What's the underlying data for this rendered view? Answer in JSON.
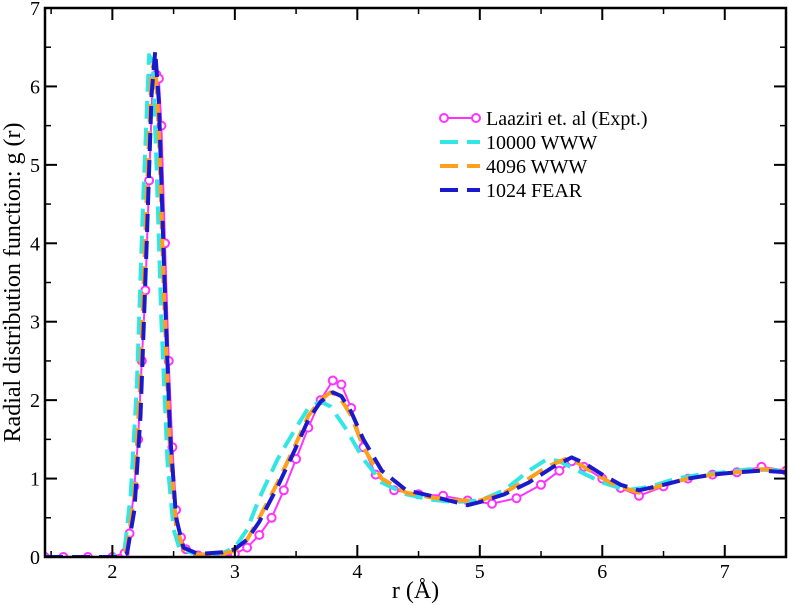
{
  "chart_data": {
    "type": "line",
    "xlabel": "r (Å)",
    "ylabel": "Radial distribution function: g (r)",
    "xlim": [
      1.45,
      7.5
    ],
    "ylim": [
      0,
      7
    ],
    "x_ticks": [
      2,
      3,
      4,
      5,
      6,
      7
    ],
    "y_ticks": [
      0,
      1,
      2,
      3,
      4,
      5,
      6,
      7
    ],
    "x_tick_labels": [
      "2",
      "3",
      "4",
      "5",
      "6",
      "7"
    ],
    "y_tick_labels": [
      "0",
      "1",
      "2",
      "3",
      "4",
      "5",
      "6",
      "7"
    ],
    "legend_position": "top-right",
    "grid": false,
    "series": [
      {
        "name": "Laaziri et. al (Expt.)",
        "color": "#ff33ff",
        "style": "solid-with-circles",
        "points": [
          [
            1.45,
            0
          ],
          [
            1.6,
            0
          ],
          [
            1.8,
            0
          ],
          [
            2.0,
            0
          ],
          [
            2.1,
            0.05
          ],
          [
            2.14,
            0.3
          ],
          [
            2.18,
            0.9
          ],
          [
            2.21,
            1.5
          ],
          [
            2.24,
            2.5
          ],
          [
            2.27,
            3.4
          ],
          [
            2.3,
            4.8
          ],
          [
            2.33,
            6.1
          ],
          [
            2.36,
            6.15
          ],
          [
            2.38,
            6.1
          ],
          [
            2.4,
            5.5
          ],
          [
            2.43,
            4.0
          ],
          [
            2.46,
            2.5
          ],
          [
            2.49,
            1.4
          ],
          [
            2.52,
            0.6
          ],
          [
            2.56,
            0.25
          ],
          [
            2.6,
            0.1
          ],
          [
            2.7,
            0.02
          ],
          [
            2.8,
            0
          ],
          [
            2.9,
            0.01
          ],
          [
            3.0,
            0.04
          ],
          [
            3.1,
            0.12
          ],
          [
            3.2,
            0.28
          ],
          [
            3.3,
            0.5
          ],
          [
            3.4,
            0.85
          ],
          [
            3.5,
            1.25
          ],
          [
            3.6,
            1.65
          ],
          [
            3.7,
            2.0
          ],
          [
            3.8,
            2.25
          ],
          [
            3.87,
            2.2
          ],
          [
            3.95,
            1.9
          ],
          [
            4.05,
            1.4
          ],
          [
            4.15,
            1.05
          ],
          [
            4.3,
            0.85
          ],
          [
            4.5,
            0.8
          ],
          [
            4.7,
            0.78
          ],
          [
            4.9,
            0.72
          ],
          [
            5.1,
            0.68
          ],
          [
            5.3,
            0.75
          ],
          [
            5.5,
            0.92
          ],
          [
            5.65,
            1.1
          ],
          [
            5.75,
            1.22
          ],
          [
            5.85,
            1.15
          ],
          [
            6.0,
            1.0
          ],
          [
            6.15,
            0.88
          ],
          [
            6.3,
            0.78
          ],
          [
            6.5,
            0.9
          ],
          [
            6.7,
            1.0
          ],
          [
            6.9,
            1.05
          ],
          [
            7.1,
            1.08
          ],
          [
            7.3,
            1.15
          ],
          [
            7.5,
            1.1
          ]
        ]
      },
      {
        "name": "10000 WWW",
        "color": "#33e6e6",
        "style": "dashed",
        "points": [
          [
            1.45,
            0
          ],
          [
            2.0,
            0
          ],
          [
            2.1,
            0.1
          ],
          [
            2.15,
            0.8
          ],
          [
            2.2,
            2.2
          ],
          [
            2.25,
            4.5
          ],
          [
            2.3,
            6.4
          ],
          [
            2.33,
            6.3
          ],
          [
            2.36,
            5.0
          ],
          [
            2.4,
            3.0
          ],
          [
            2.45,
            1.2
          ],
          [
            2.5,
            0.35
          ],
          [
            2.55,
            0.1
          ],
          [
            2.7,
            0.03
          ],
          [
            2.9,
            0.05
          ],
          [
            3.0,
            0.12
          ],
          [
            3.1,
            0.35
          ],
          [
            3.2,
            0.75
          ],
          [
            3.35,
            1.25
          ],
          [
            3.5,
            1.65
          ],
          [
            3.6,
            1.9
          ],
          [
            3.7,
            1.98
          ],
          [
            3.78,
            1.92
          ],
          [
            3.9,
            1.65
          ],
          [
            4.05,
            1.25
          ],
          [
            4.2,
            0.95
          ],
          [
            4.4,
            0.8
          ],
          [
            4.6,
            0.73
          ],
          [
            4.8,
            0.7
          ],
          [
            5.0,
            0.72
          ],
          [
            5.2,
            0.85
          ],
          [
            5.4,
            1.1
          ],
          [
            5.55,
            1.25
          ],
          [
            5.65,
            1.22
          ],
          [
            5.8,
            1.1
          ],
          [
            6.0,
            0.95
          ],
          [
            6.2,
            0.85
          ],
          [
            6.4,
            0.9
          ],
          [
            6.6,
            1.0
          ],
          [
            6.8,
            1.05
          ],
          [
            7.0,
            1.08
          ],
          [
            7.2,
            1.12
          ],
          [
            7.5,
            1.1
          ]
        ]
      },
      {
        "name": "4096 WWW",
        "color": "#ff9f1a",
        "style": "dashed",
        "points": [
          [
            1.45,
            0
          ],
          [
            2.05,
            0
          ],
          [
            2.12,
            0.1
          ],
          [
            2.18,
            0.8
          ],
          [
            2.23,
            2.3
          ],
          [
            2.28,
            4.6
          ],
          [
            2.32,
            6.2
          ],
          [
            2.35,
            6.35
          ],
          [
            2.38,
            5.4
          ],
          [
            2.42,
            3.4
          ],
          [
            2.47,
            1.4
          ],
          [
            2.52,
            0.4
          ],
          [
            2.58,
            0.1
          ],
          [
            2.7,
            0.03
          ],
          [
            2.9,
            0.04
          ],
          [
            3.0,
            0.08
          ],
          [
            3.1,
            0.22
          ],
          [
            3.2,
            0.5
          ],
          [
            3.35,
            0.95
          ],
          [
            3.5,
            1.45
          ],
          [
            3.6,
            1.8
          ],
          [
            3.7,
            2.0
          ],
          [
            3.78,
            2.1
          ],
          [
            3.85,
            2.05
          ],
          [
            3.95,
            1.8
          ],
          [
            4.05,
            1.4
          ],
          [
            4.2,
            1.0
          ],
          [
            4.4,
            0.82
          ],
          [
            4.6,
            0.76
          ],
          [
            4.8,
            0.72
          ],
          [
            5.0,
            0.72
          ],
          [
            5.2,
            0.82
          ],
          [
            5.4,
            1.0
          ],
          [
            5.55,
            1.15
          ],
          [
            5.7,
            1.25
          ],
          [
            5.8,
            1.2
          ],
          [
            5.95,
            1.05
          ],
          [
            6.1,
            0.92
          ],
          [
            6.3,
            0.82
          ],
          [
            6.5,
            0.92
          ],
          [
            6.7,
            1.0
          ],
          [
            6.9,
            1.05
          ],
          [
            7.1,
            1.08
          ],
          [
            7.3,
            1.12
          ],
          [
            7.5,
            1.1
          ]
        ]
      },
      {
        "name": "1024 FEAR",
        "color": "#1a1acc",
        "style": "dashed",
        "points": [
          [
            1.45,
            0
          ],
          [
            2.05,
            0
          ],
          [
            2.12,
            0.05
          ],
          [
            2.18,
            0.6
          ],
          [
            2.23,
            1.8
          ],
          [
            2.28,
            4.0
          ],
          [
            2.32,
            5.9
          ],
          [
            2.35,
            6.45
          ],
          [
            2.38,
            5.8
          ],
          [
            2.42,
            3.8
          ],
          [
            2.47,
            1.6
          ],
          [
            2.52,
            0.5
          ],
          [
            2.58,
            0.12
          ],
          [
            2.7,
            0.04
          ],
          [
            2.9,
            0.06
          ],
          [
            3.0,
            0.1
          ],
          [
            3.1,
            0.22
          ],
          [
            3.2,
            0.45
          ],
          [
            3.35,
            0.9
          ],
          [
            3.5,
            1.4
          ],
          [
            3.6,
            1.75
          ],
          [
            3.7,
            1.98
          ],
          [
            3.8,
            2.1
          ],
          [
            3.87,
            2.05
          ],
          [
            3.95,
            1.85
          ],
          [
            4.05,
            1.5
          ],
          [
            4.2,
            1.1
          ],
          [
            4.4,
            0.85
          ],
          [
            4.6,
            0.78
          ],
          [
            4.8,
            0.7
          ],
          [
            4.9,
            0.66
          ],
          [
            5.0,
            0.7
          ],
          [
            5.2,
            0.8
          ],
          [
            5.4,
            0.95
          ],
          [
            5.6,
            1.15
          ],
          [
            5.75,
            1.27
          ],
          [
            5.85,
            1.2
          ],
          [
            6.0,
            1.05
          ],
          [
            6.15,
            0.92
          ],
          [
            6.3,
            0.85
          ],
          [
            6.5,
            0.92
          ],
          [
            6.7,
            1.0
          ],
          [
            6.9,
            1.05
          ],
          [
            7.1,
            1.08
          ],
          [
            7.3,
            1.1
          ],
          [
            7.5,
            1.08
          ]
        ]
      }
    ]
  }
}
